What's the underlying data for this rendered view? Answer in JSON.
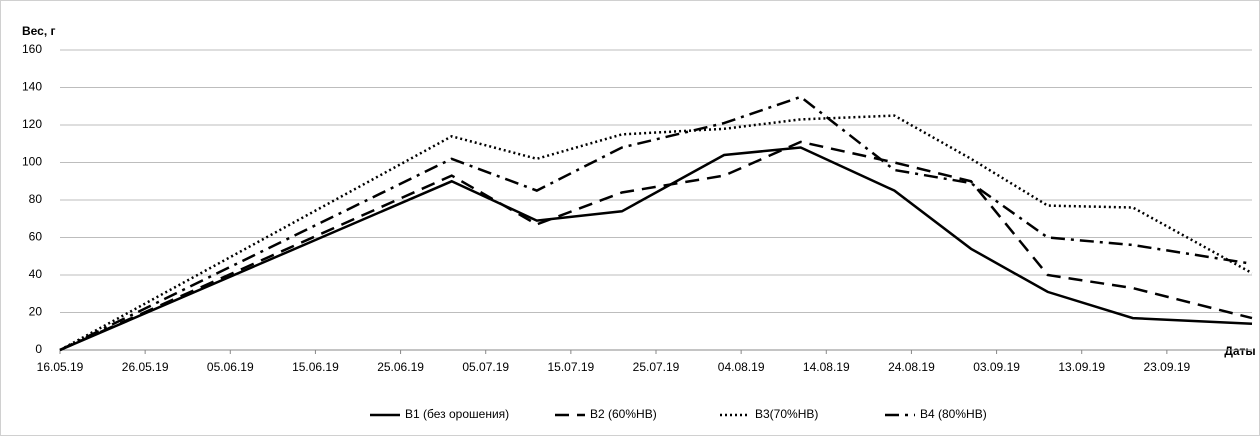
{
  "chart_data": {
    "type": "line",
    "y_label": "Вес, г",
    "x_label": "Даты",
    "x": [
      "16.05.19",
      "01.07.19",
      "11.07.19",
      "21.07.19",
      "02.08.19",
      "11.08.19",
      "22.08.19",
      "31.08.19",
      "09.09.19",
      "19.09.19",
      "03.10.19"
    ],
    "series": [
      {
        "name": "В1 (без орошения)",
        "color": "#000000",
        "dash": "solid",
        "values": [
          0,
          90,
          69,
          74,
          104,
          108,
          85,
          54,
          31,
          17,
          14
        ]
      },
      {
        "name": "В2 (60%НВ)",
        "color": "#000000",
        "dash": "dash",
        "values": [
          0,
          93,
          67,
          84,
          93,
          111,
          100,
          90,
          40,
          33,
          17
        ]
      },
      {
        "name": "В3(70%НВ)",
        "color": "#000000",
        "dash": "dot",
        "values": [
          0,
          114,
          102,
          115,
          118,
          123,
          125,
          102,
          77,
          76,
          41
        ]
      },
      {
        "name": "В4 (80%НВ)",
        "color": "#000000",
        "dash": "dashdot",
        "values": [
          0,
          102,
          85,
          108,
          121,
          135,
          96,
          89,
          60,
          56,
          46
        ]
      }
    ],
    "xlim": [
      "16.05.19",
      "03.10.19"
    ],
    "xticks": [
      "16.05.19",
      "26.05.19",
      "05.06.19",
      "15.06.19",
      "25.06.19",
      "05.07.19",
      "15.07.19",
      "25.07.19",
      "04.08.19",
      "14.08.19",
      "24.08.19",
      "03.09.19",
      "13.09.19",
      "23.09.19"
    ],
    "ylim": [
      0,
      160
    ],
    "yticks": [
      0,
      20,
      40,
      60,
      80,
      100,
      120,
      140,
      160
    ],
    "grid": true,
    "legend": "bottom"
  }
}
